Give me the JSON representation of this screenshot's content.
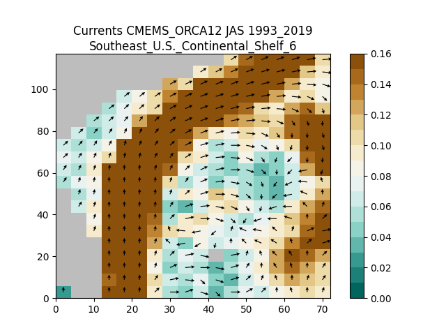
{
  "chart_data": {
    "type": "heatmap",
    "title": "Currents CMEMS_ORCA12 JAS 1993_2019 Southeast_U.S._Continental_Shelf_6",
    "xlim": [
      0,
      72
    ],
    "ylim": [
      0,
      117
    ],
    "xticks": [
      0,
      10,
      20,
      30,
      40,
      50,
      60,
      70
    ],
    "yticks": [
      0,
      20,
      40,
      60,
      80,
      100
    ],
    "x_edges": [
      0,
      4,
      8,
      12,
      16,
      20,
      24,
      28,
      32,
      36,
      40,
      44,
      48,
      52,
      56,
      60,
      64,
      68,
      72
    ],
    "y_edges": [
      0,
      5.85,
      11.7,
      17.55,
      23.4,
      29.25,
      35.1,
      40.95,
      46.8,
      52.65,
      58.5,
      64.35,
      70.2,
      76.05,
      81.9,
      87.75,
      93.6,
      99.45,
      105.3,
      111.15,
      117
    ],
    "cells": [
      [
        0.02,
        null,
        null,
        0.16,
        0.16,
        0.16,
        0.09,
        0.05,
        0.04,
        0.06,
        0.03,
        0.05,
        0.07,
        0.06,
        0.08,
        0.09,
        0.1,
        0.09
      ],
      [
        null,
        null,
        null,
        0.14,
        0.16,
        0.16,
        0.1,
        0.06,
        0.05,
        0.07,
        0.04,
        0.03,
        0.06,
        0.08,
        0.1,
        0.12,
        0.11,
        0.1
      ],
      [
        null,
        null,
        null,
        0.16,
        0.16,
        0.16,
        0.08,
        0.04,
        0.06,
        0.05,
        0.03,
        0.05,
        0.07,
        0.09,
        0.12,
        0.14,
        0.12,
        0.1
      ],
      [
        null,
        null,
        null,
        0.16,
        0.16,
        0.16,
        0.09,
        0.05,
        0.07,
        0.06,
        null,
        0.04,
        0.06,
        0.08,
        0.12,
        0.15,
        0.14,
        0.12
      ],
      [
        null,
        null,
        null,
        0.16,
        0.16,
        0.16,
        0.12,
        0.06,
        0.04,
        0.08,
        0.06,
        0.07,
        0.08,
        0.09,
        0.1,
        0.13,
        0.16,
        0.16
      ],
      [
        null,
        null,
        0.09,
        0.16,
        0.16,
        0.16,
        0.13,
        0.1,
        0.09,
        0.08,
        0.07,
        0.06,
        0.07,
        0.08,
        0.09,
        0.1,
        0.14,
        0.16
      ],
      [
        null,
        null,
        0.08,
        0.16,
        0.16,
        0.16,
        0.14,
        0.05,
        0.09,
        0.1,
        0.08,
        0.06,
        0.05,
        0.07,
        0.09,
        0.11,
        0.13,
        0.16
      ],
      [
        null,
        0.06,
        0.09,
        0.16,
        0.16,
        0.16,
        0.15,
        0.04,
        0.03,
        0.06,
        0.09,
        0.1,
        0.08,
        0.06,
        0.05,
        0.09,
        0.12,
        0.14
      ],
      [
        null,
        0.05,
        0.07,
        0.16,
        0.16,
        0.16,
        0.16,
        0.06,
        0.09,
        0.08,
        0.11,
        0.09,
        0.05,
        0.04,
        0.03,
        0.06,
        0.09,
        0.12
      ],
      [
        0.05,
        0.07,
        0.08,
        0.16,
        0.16,
        0.16,
        0.16,
        0.1,
        0.05,
        0.07,
        0.04,
        0.06,
        0.05,
        0.04,
        0.03,
        0.06,
        0.08,
        0.1
      ],
      [
        0.06,
        0.05,
        0.09,
        0.16,
        0.16,
        0.16,
        0.16,
        0.14,
        0.08,
        0.06,
        0.05,
        0.04,
        0.05,
        0.03,
        0.04,
        0.06,
        0.12,
        0.16
      ],
      [
        0.07,
        0.06,
        0.08,
        0.1,
        0.16,
        0.16,
        0.16,
        0.16,
        0.1,
        0.09,
        0.06,
        0.04,
        0.08,
        0.05,
        0.04,
        0.07,
        0.14,
        0.16
      ],
      [
        0.06,
        0.05,
        0.06,
        0.08,
        0.15,
        0.16,
        0.16,
        0.16,
        0.14,
        0.08,
        0.05,
        0.06,
        0.09,
        0.07,
        0.08,
        0.1,
        0.16,
        0.16
      ],
      [
        null,
        0.06,
        0.04,
        0.06,
        0.08,
        0.16,
        0.16,
        0.16,
        0.16,
        0.12,
        0.09,
        0.08,
        0.1,
        0.09,
        0.11,
        0.14,
        0.16,
        0.16
      ],
      [
        null,
        null,
        0.05,
        0.06,
        0.07,
        0.12,
        0.16,
        0.16,
        0.16,
        0.16,
        0.15,
        0.13,
        0.12,
        0.11,
        0.1,
        0.14,
        0.16,
        0.15
      ],
      [
        null,
        null,
        null,
        0.05,
        0.07,
        0.09,
        0.1,
        0.16,
        0.16,
        0.16,
        0.16,
        0.16,
        0.14,
        0.1,
        0.09,
        0.12,
        0.14,
        0.11
      ],
      [
        null,
        null,
        null,
        null,
        0.06,
        0.08,
        0.1,
        0.13,
        0.16,
        0.16,
        0.16,
        0.16,
        0.16,
        0.15,
        0.12,
        0.09,
        0.1,
        0.08
      ],
      [
        null,
        null,
        null,
        null,
        null,
        null,
        null,
        0.12,
        0.1,
        0.16,
        0.16,
        0.16,
        0.16,
        0.16,
        0.16,
        0.12,
        0.09,
        0.08
      ],
      [
        null,
        null,
        null,
        null,
        null,
        null,
        null,
        null,
        null,
        0.09,
        0.11,
        0.13,
        0.16,
        0.16,
        0.16,
        0.16,
        0.11,
        0.09
      ],
      [
        null,
        null,
        null,
        null,
        null,
        null,
        null,
        null,
        null,
        null,
        null,
        0.1,
        0.14,
        0.16,
        0.16,
        0.16,
        0.16,
        0.1
      ]
    ],
    "arrow_angles": [
      [
        90,
        null,
        null,
        90,
        90,
        90,
        60,
        0,
        30,
        330,
        300,
        0,
        45,
        60,
        90,
        100,
        90,
        80
      ],
      [
        null,
        null,
        null,
        90,
        90,
        90,
        70,
        20,
        350,
        300,
        330,
        30,
        60,
        80,
        100,
        90,
        80,
        70
      ],
      [
        null,
        null,
        null,
        90,
        90,
        90,
        80,
        40,
        10,
        0,
        340,
        30,
        70,
        90,
        110,
        100,
        90,
        70
      ],
      [
        null,
        null,
        null,
        90,
        90,
        90,
        80,
        60,
        20,
        340,
        null,
        20,
        80,
        100,
        120,
        110,
        90,
        60
      ],
      [
        null,
        null,
        null,
        90,
        90,
        90,
        80,
        120,
        200,
        230,
        260,
        90,
        120,
        140,
        130,
        100,
        60,
        30
      ],
      [
        null,
        null,
        80,
        90,
        90,
        90,
        85,
        100,
        170,
        200,
        240,
        80,
        140,
        160,
        120,
        80,
        40,
        20
      ],
      [
        null,
        null,
        80,
        90,
        90,
        90,
        85,
        60,
        20,
        0,
        330,
        300,
        250,
        210,
        180,
        150,
        90,
        60
      ],
      [
        null,
        70,
        80,
        90,
        90,
        90,
        85,
        70,
        30,
        10,
        340,
        320,
        290,
        260,
        210,
        180,
        120,
        80
      ],
      [
        null,
        80,
        85,
        90,
        90,
        90,
        85,
        80,
        60,
        30,
        0,
        330,
        300,
        270,
        240,
        200,
        140,
        90
      ],
      [
        70,
        80,
        85,
        90,
        90,
        90,
        85,
        80,
        70,
        40,
        10,
        340,
        310,
        280,
        250,
        220,
        170,
        100
      ],
      [
        70,
        75,
        80,
        85,
        90,
        90,
        80,
        75,
        60,
        40,
        20,
        0,
        330,
        300,
        270,
        240,
        200,
        260
      ],
      [
        60,
        70,
        75,
        80,
        85,
        85,
        75,
        70,
        50,
        30,
        10,
        350,
        320,
        290,
        260,
        240,
        270,
        270
      ],
      [
        60,
        65,
        70,
        75,
        80,
        80,
        70,
        60,
        45,
        30,
        20,
        0,
        340,
        310,
        280,
        260,
        270,
        280
      ],
      [
        null,
        60,
        65,
        70,
        75,
        75,
        65,
        55,
        45,
        35,
        25,
        10,
        350,
        320,
        290,
        270,
        270,
        280
      ],
      [
        null,
        null,
        55,
        60,
        65,
        70,
        60,
        50,
        40,
        35,
        30,
        20,
        10,
        350,
        320,
        290,
        280,
        270
      ],
      [
        null,
        null,
        null,
        55,
        60,
        60,
        55,
        45,
        40,
        35,
        30,
        25,
        20,
        10,
        350,
        320,
        300,
        280
      ],
      [
        null,
        null,
        null,
        null,
        55,
        55,
        50,
        45,
        40,
        35,
        30,
        30,
        25,
        20,
        10,
        350,
        320,
        300
      ],
      [
        null,
        null,
        null,
        null,
        null,
        null,
        null,
        45,
        40,
        40,
        35,
        35,
        30,
        25,
        20,
        10,
        350,
        330
      ],
      [
        null,
        null,
        null,
        null,
        null,
        null,
        null,
        null,
        null,
        50,
        45,
        40,
        35,
        30,
        25,
        20,
        10,
        350
      ],
      [
        null,
        null,
        null,
        null,
        null,
        null,
        null,
        null,
        null,
        null,
        null,
        50,
        45,
        40,
        35,
        30,
        20,
        10
      ]
    ],
    "colorbar_levels": [
      0,
      0.01,
      0.02,
      0.03,
      0.04,
      0.05,
      0.06,
      0.07,
      0.08,
      0.09,
      0.1,
      0.11,
      0.12,
      0.13,
      0.14,
      0.15,
      0.16
    ],
    "colorbar_lim": [
      0,
      0.16
    ],
    "colorbar_ticks": [
      {
        "value": 0,
        "label": "0.00"
      },
      {
        "value": 0.02,
        "label": "0.02"
      },
      {
        "value": 0.04,
        "label": "0.04"
      },
      {
        "value": 0.06,
        "label": "0.06"
      },
      {
        "value": 0.08,
        "label": "0.08"
      },
      {
        "value": 0.1,
        "label": "0.10"
      },
      {
        "value": 0.12,
        "label": "0.12"
      },
      {
        "value": 0.14,
        "label": "0.14"
      },
      {
        "value": 0.16,
        "label": "0.16"
      }
    ]
  }
}
